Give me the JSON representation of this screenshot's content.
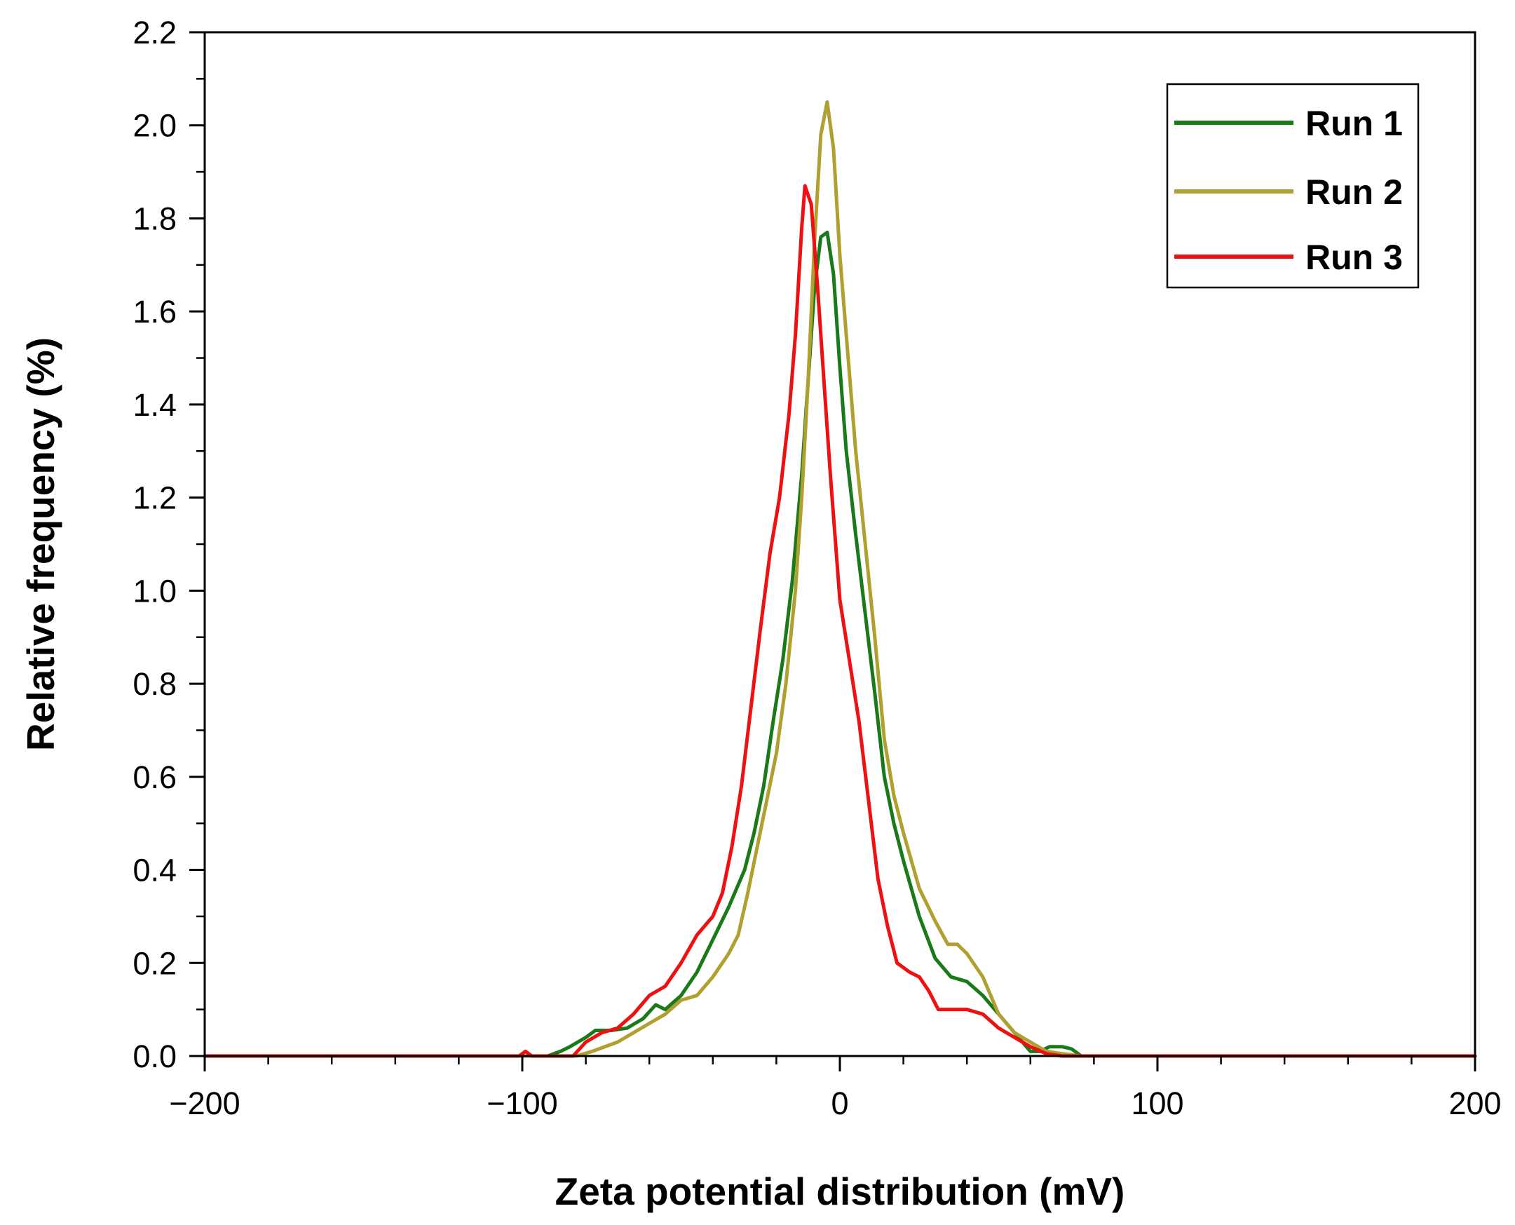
{
  "chart_data": {
    "type": "line",
    "title": "",
    "xlabel": "Zeta potential distribution (mV)",
    "ylabel": "Relative frequency (%)",
    "xlim": [
      -200,
      200
    ],
    "ylim": [
      0,
      2.2
    ],
    "x_ticks": [
      -200,
      -100,
      0,
      100,
      200
    ],
    "x_tick_labels": [
      "−200",
      "−100",
      "0",
      "100",
      "200"
    ],
    "y_ticks": [
      0,
      0.2,
      0.4,
      0.6,
      0.8,
      1.0,
      1.2,
      1.4,
      1.6,
      1.8,
      2.0,
      2.2
    ],
    "y_tick_labels": [
      "0.0",
      "0.2",
      "0.4",
      "0.6",
      "0.8",
      "1.0",
      "1.2",
      "1.4",
      "1.6",
      "1.8",
      "2.0",
      "2.2"
    ],
    "grid": false,
    "legend_position": "top-right",
    "series": [
      {
        "name": "Run 1",
        "color": "#1a7a1a",
        "points": [
          [
            -200,
            0
          ],
          [
            -92,
            0
          ],
          [
            -88,
            0.01
          ],
          [
            -85,
            0.02
          ],
          [
            -80,
            0.04
          ],
          [
            -77,
            0.055
          ],
          [
            -72,
            0.055
          ],
          [
            -67,
            0.06
          ],
          [
            -62,
            0.08
          ],
          [
            -58,
            0.11
          ],
          [
            -55,
            0.1
          ],
          [
            -50,
            0.13
          ],
          [
            -45,
            0.18
          ],
          [
            -40,
            0.25
          ],
          [
            -35,
            0.32
          ],
          [
            -30,
            0.4
          ],
          [
            -27,
            0.48
          ],
          [
            -24,
            0.58
          ],
          [
            -21,
            0.72
          ],
          [
            -18,
            0.85
          ],
          [
            -15,
            1.02
          ],
          [
            -12,
            1.25
          ],
          [
            -10,
            1.45
          ],
          [
            -8,
            1.65
          ],
          [
            -6,
            1.76
          ],
          [
            -4,
            1.77
          ],
          [
            -2,
            1.68
          ],
          [
            0,
            1.48
          ],
          [
            2,
            1.3
          ],
          [
            5,
            1.12
          ],
          [
            8,
            0.95
          ],
          [
            11,
            0.78
          ],
          [
            14,
            0.6
          ],
          [
            17,
            0.5
          ],
          [
            20,
            0.42
          ],
          [
            25,
            0.3
          ],
          [
            30,
            0.21
          ],
          [
            35,
            0.17
          ],
          [
            40,
            0.16
          ],
          [
            45,
            0.13
          ],
          [
            50,
            0.09
          ],
          [
            55,
            0.05
          ],
          [
            60,
            0.01
          ],
          [
            63,
            0.01
          ],
          [
            66,
            0.02
          ],
          [
            70,
            0.02
          ],
          [
            73,
            0.015
          ],
          [
            76,
            0
          ],
          [
            200,
            0
          ]
        ]
      },
      {
        "name": "Run 2",
        "color": "#b0a030",
        "points": [
          [
            -200,
            0
          ],
          [
            -83,
            0
          ],
          [
            -78,
            0.01
          ],
          [
            -70,
            0.03
          ],
          [
            -65,
            0.05
          ],
          [
            -60,
            0.07
          ],
          [
            -55,
            0.09
          ],
          [
            -50,
            0.12
          ],
          [
            -45,
            0.13
          ],
          [
            -40,
            0.17
          ],
          [
            -35,
            0.22
          ],
          [
            -32,
            0.26
          ],
          [
            -29,
            0.35
          ],
          [
            -26,
            0.45
          ],
          [
            -23,
            0.55
          ],
          [
            -20,
            0.65
          ],
          [
            -17,
            0.8
          ],
          [
            -14,
            1.0
          ],
          [
            -12,
            1.2
          ],
          [
            -10,
            1.45
          ],
          [
            -8,
            1.75
          ],
          [
            -6,
            1.98
          ],
          [
            -4,
            2.05
          ],
          [
            -2,
            1.95
          ],
          [
            0,
            1.72
          ],
          [
            2,
            1.55
          ],
          [
            5,
            1.3
          ],
          [
            8,
            1.1
          ],
          [
            11,
            0.9
          ],
          [
            14,
            0.68
          ],
          [
            17,
            0.56
          ],
          [
            20,
            0.48
          ],
          [
            25,
            0.36
          ],
          [
            30,
            0.29
          ],
          [
            34,
            0.24
          ],
          [
            37,
            0.24
          ],
          [
            40,
            0.22
          ],
          [
            45,
            0.17
          ],
          [
            50,
            0.09
          ],
          [
            55,
            0.05
          ],
          [
            60,
            0.03
          ],
          [
            65,
            0.01
          ],
          [
            70,
            0.005
          ],
          [
            76,
            0
          ],
          [
            200,
            0
          ]
        ]
      },
      {
        "name": "Run 3",
        "color": "#ee1111",
        "points": [
          [
            -200,
            0
          ],
          [
            -101,
            0
          ],
          [
            -99,
            0.01
          ],
          [
            -97,
            0
          ],
          [
            -84,
            0
          ],
          [
            -80,
            0.03
          ],
          [
            -75,
            0.05
          ],
          [
            -70,
            0.06
          ],
          [
            -65,
            0.09
          ],
          [
            -60,
            0.13
          ],
          [
            -55,
            0.15
          ],
          [
            -50,
            0.2
          ],
          [
            -45,
            0.26
          ],
          [
            -40,
            0.3
          ],
          [
            -37,
            0.35
          ],
          [
            -34,
            0.45
          ],
          [
            -31,
            0.58
          ],
          [
            -28,
            0.75
          ],
          [
            -25,
            0.92
          ],
          [
            -22,
            1.08
          ],
          [
            -19,
            1.2
          ],
          [
            -16,
            1.38
          ],
          [
            -14,
            1.55
          ],
          [
            -12,
            1.78
          ],
          [
            -11,
            1.87
          ],
          [
            -9,
            1.83
          ],
          [
            -7,
            1.65
          ],
          [
            -5,
            1.45
          ],
          [
            -3,
            1.25
          ],
          [
            0,
            0.98
          ],
          [
            3,
            0.85
          ],
          [
            6,
            0.72
          ],
          [
            9,
            0.55
          ],
          [
            12,
            0.38
          ],
          [
            15,
            0.28
          ],
          [
            18,
            0.2
          ],
          [
            22,
            0.18
          ],
          [
            25,
            0.17
          ],
          [
            28,
            0.14
          ],
          [
            31,
            0.1
          ],
          [
            35,
            0.1
          ],
          [
            40,
            0.1
          ],
          [
            45,
            0.09
          ],
          [
            50,
            0.06
          ],
          [
            55,
            0.04
          ],
          [
            60,
            0.02
          ],
          [
            65,
            0.005
          ],
          [
            70,
            0
          ],
          [
            200,
            0
          ]
        ]
      }
    ]
  }
}
